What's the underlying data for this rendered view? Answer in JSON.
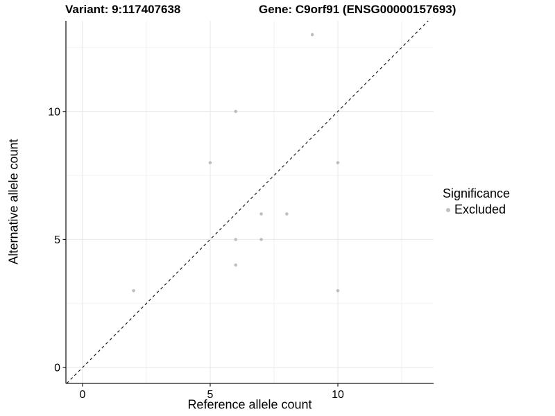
{
  "header": {
    "variant_title": "Variant: 9:117407638",
    "gene_title": "Gene: C9orf91 (ENSG00000157693)"
  },
  "chart_data": {
    "type": "scatter",
    "xlabel": "Reference allele count",
    "ylabel": "Alternative allele count",
    "xlim": [
      -0.65,
      13.75
    ],
    "ylim": [
      -0.62,
      13.54
    ],
    "x_ticks": [
      0,
      5,
      10
    ],
    "y_ticks": [
      0,
      5,
      10
    ],
    "x_minor_gridlines": [
      2.5,
      7.5,
      12.5
    ],
    "y_minor_gridlines": [
      2.5,
      7.5,
      12.5
    ],
    "grid": true,
    "identity_line": "y = x dashed diagonal",
    "series": [
      {
        "name": "Excluded",
        "color": "#bebebe",
        "points": [
          [
            2,
            3
          ],
          [
            5,
            8
          ],
          [
            6,
            4
          ],
          [
            6,
            5
          ],
          [
            6,
            10
          ],
          [
            7,
            5
          ],
          [
            7,
            6
          ],
          [
            8,
            6
          ],
          [
            9,
            13
          ],
          [
            10,
            3
          ],
          [
            10,
            8
          ]
        ]
      }
    ],
    "legend": {
      "title": "Significance",
      "position": "right",
      "items": [
        {
          "label": "Excluded",
          "color": "#bebebe"
        }
      ]
    },
    "colors": {
      "point": "#bebebe",
      "axis": "#1a1a1a",
      "identity": "#1a1a1a",
      "major_grid": "#e6e6e6",
      "minor_grid": "#f2f2f2"
    }
  }
}
